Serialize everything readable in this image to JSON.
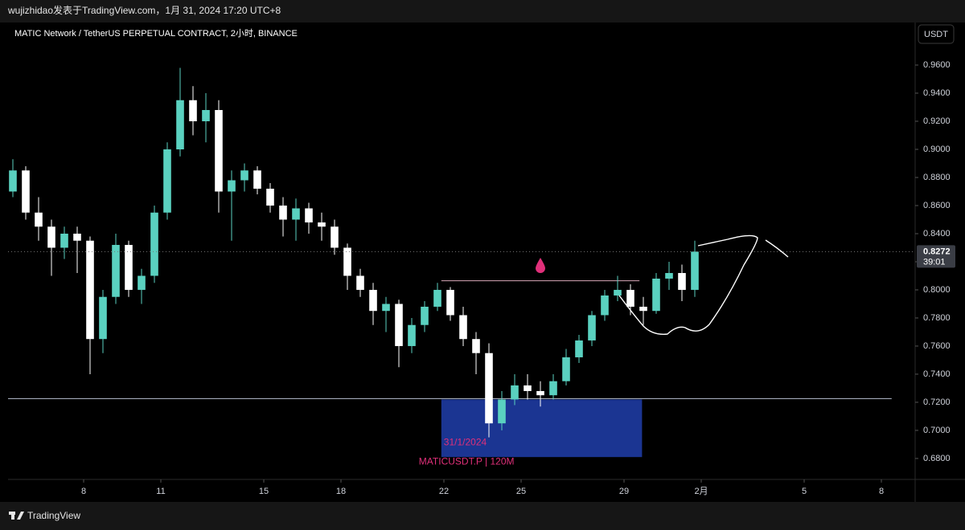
{
  "header": "wujizhidao发表于TradingView.com，1月 31, 2024 17:20 UTC+8",
  "footer": "TradingView",
  "chart_data": {
    "type": "candlestick",
    "title": "MATIC Network / TetherUS PERPETUAL CONTRACT, 2小时, BINANCE",
    "currency": "USDT",
    "up_color": "#5ad1c0",
    "down_color": "#ffffff",
    "x": [
      5.25,
      5.75,
      6.25,
      6.75,
      7.25,
      7.75,
      8.25,
      8.75,
      9.25,
      9.75,
      10.25,
      10.75,
      11.25,
      11.75,
      12.25,
      12.75,
      13.25,
      13.75,
      14.25,
      14.75,
      15.25,
      15.75,
      16.25,
      16.75,
      17.25,
      17.75,
      18.25,
      18.75,
      19.25,
      19.75,
      20.25,
      20.75,
      21.25,
      21.75,
      22.25,
      22.75,
      23.25,
      23.75,
      24.25,
      24.75,
      25.25,
      25.75,
      26.25,
      26.75,
      27.25,
      27.75,
      28.25,
      28.75,
      29.25,
      29.75,
      30.25,
      30.75,
      31.25,
      31.75
    ],
    "open": [
      0.87,
      0.885,
      0.855,
      0.845,
      0.83,
      0.84,
      0.835,
      0.765,
      0.795,
      0.832,
      0.8,
      0.81,
      0.855,
      0.9,
      0.935,
      0.92,
      0.928,
      0.87,
      0.878,
      0.885,
      0.872,
      0.86,
      0.85,
      0.858,
      0.848,
      0.845,
      0.83,
      0.81,
      0.8,
      0.785,
      0.79,
      0.76,
      0.775,
      0.788,
      0.8,
      0.782,
      0.765,
      0.755,
      0.705,
      0.722,
      0.732,
      0.728,
      0.725,
      0.735,
      0.752,
      0.764,
      0.782,
      0.796,
      0.8,
      0.788,
      0.785,
      0.808,
      0.812,
      0.8
    ],
    "high": [
      0.893,
      0.888,
      0.866,
      0.85,
      0.845,
      0.845,
      0.838,
      0.8,
      0.84,
      0.835,
      0.815,
      0.86,
      0.905,
      0.958,
      0.945,
      0.94,
      0.935,
      0.885,
      0.89,
      0.888,
      0.876,
      0.866,
      0.865,
      0.862,
      0.855,
      0.85,
      0.833,
      0.815,
      0.805,
      0.795,
      0.793,
      0.78,
      0.792,
      0.805,
      0.802,
      0.788,
      0.77,
      0.762,
      0.728,
      0.74,
      0.74,
      0.735,
      0.74,
      0.758,
      0.768,
      0.785,
      0.8,
      0.81,
      0.804,
      0.795,
      0.812,
      0.82,
      0.818,
      0.835
    ],
    "low": [
      0.866,
      0.85,
      0.835,
      0.81,
      0.822,
      0.812,
      0.74,
      0.755,
      0.79,
      0.795,
      0.79,
      0.805,
      0.85,
      0.895,
      0.91,
      0.905,
      0.855,
      0.835,
      0.87,
      0.868,
      0.855,
      0.838,
      0.835,
      0.84,
      0.835,
      0.825,
      0.8,
      0.795,
      0.775,
      0.77,
      0.745,
      0.755,
      0.77,
      0.785,
      0.778,
      0.76,
      0.74,
      0.695,
      0.7,
      0.718,
      0.722,
      0.717,
      0.722,
      0.732,
      0.748,
      0.76,
      0.778,
      0.792,
      0.782,
      0.775,
      0.783,
      0.8,
      0.792,
      0.795
    ],
    "close": [
      0.885,
      0.855,
      0.845,
      0.83,
      0.84,
      0.835,
      0.765,
      0.795,
      0.832,
      0.8,
      0.81,
      0.855,
      0.9,
      0.935,
      0.92,
      0.928,
      0.87,
      0.878,
      0.885,
      0.872,
      0.86,
      0.85,
      0.858,
      0.848,
      0.845,
      0.83,
      0.81,
      0.8,
      0.785,
      0.79,
      0.76,
      0.775,
      0.788,
      0.8,
      0.782,
      0.765,
      0.755,
      0.705,
      0.722,
      0.732,
      0.728,
      0.725,
      0.735,
      0.752,
      0.764,
      0.782,
      0.796,
      0.8,
      0.788,
      0.785,
      0.808,
      0.812,
      0.8,
      0.8272
    ],
    "xlim": [
      5.0625,
      40.3125
    ],
    "xticks": [
      8,
      11,
      15,
      18,
      22,
      25,
      29,
      {
        "value": 32,
        "label": "2月"
      },
      {
        "value": 36,
        "label": "5"
      },
      {
        "value": 39,
        "label": "8"
      }
    ],
    "ylim": [
      0.6651,
      0.9903
    ],
    "yticks": [
      {
        "value": 0.96,
        "label": "0.9600"
      },
      {
        "value": 0.94,
        "label": "0.9400"
      },
      {
        "value": 0.92,
        "label": "0.9200"
      },
      {
        "value": 0.9,
        "label": "0.9000"
      },
      {
        "value": 0.88,
        "label": "0.8800"
      },
      {
        "value": 0.86,
        "label": "0.8600"
      },
      {
        "value": 0.84,
        "label": "0.8400"
      },
      {
        "value": 0.82,
        "label": "0.8200"
      },
      {
        "value": 0.8,
        "label": "0.8000"
      },
      {
        "value": 0.78,
        "label": "0.7800"
      },
      {
        "value": 0.76,
        "label": "0.7600"
      },
      {
        "value": 0.74,
        "label": "0.7400"
      },
      {
        "value": 0.72,
        "label": "0.7200"
      },
      {
        "value": 0.7,
        "label": "0.7000"
      },
      {
        "value": 0.68,
        "label": "0.6800"
      }
    ],
    "last_price": 0.8272,
    "countdown": "39:01",
    "lines": [
      {
        "x": [
          5.0625,
          39.4
        ],
        "y": 0.7226,
        "color": "#b8c0d0"
      },
      {
        "x": [
          21.9,
          29.6
        ],
        "y": 0.8065,
        "color": "#d8a8b8"
      }
    ],
    "box": {
      "x": [
        21.9,
        29.7
      ],
      "y": [
        0.681,
        0.722
      ],
      "color": "#1b3592"
    },
    "annotations": [
      "31/1/2024",
      "MATICUSDT.P | 120M"
    ],
    "annotation_color": "#e0307a"
  }
}
